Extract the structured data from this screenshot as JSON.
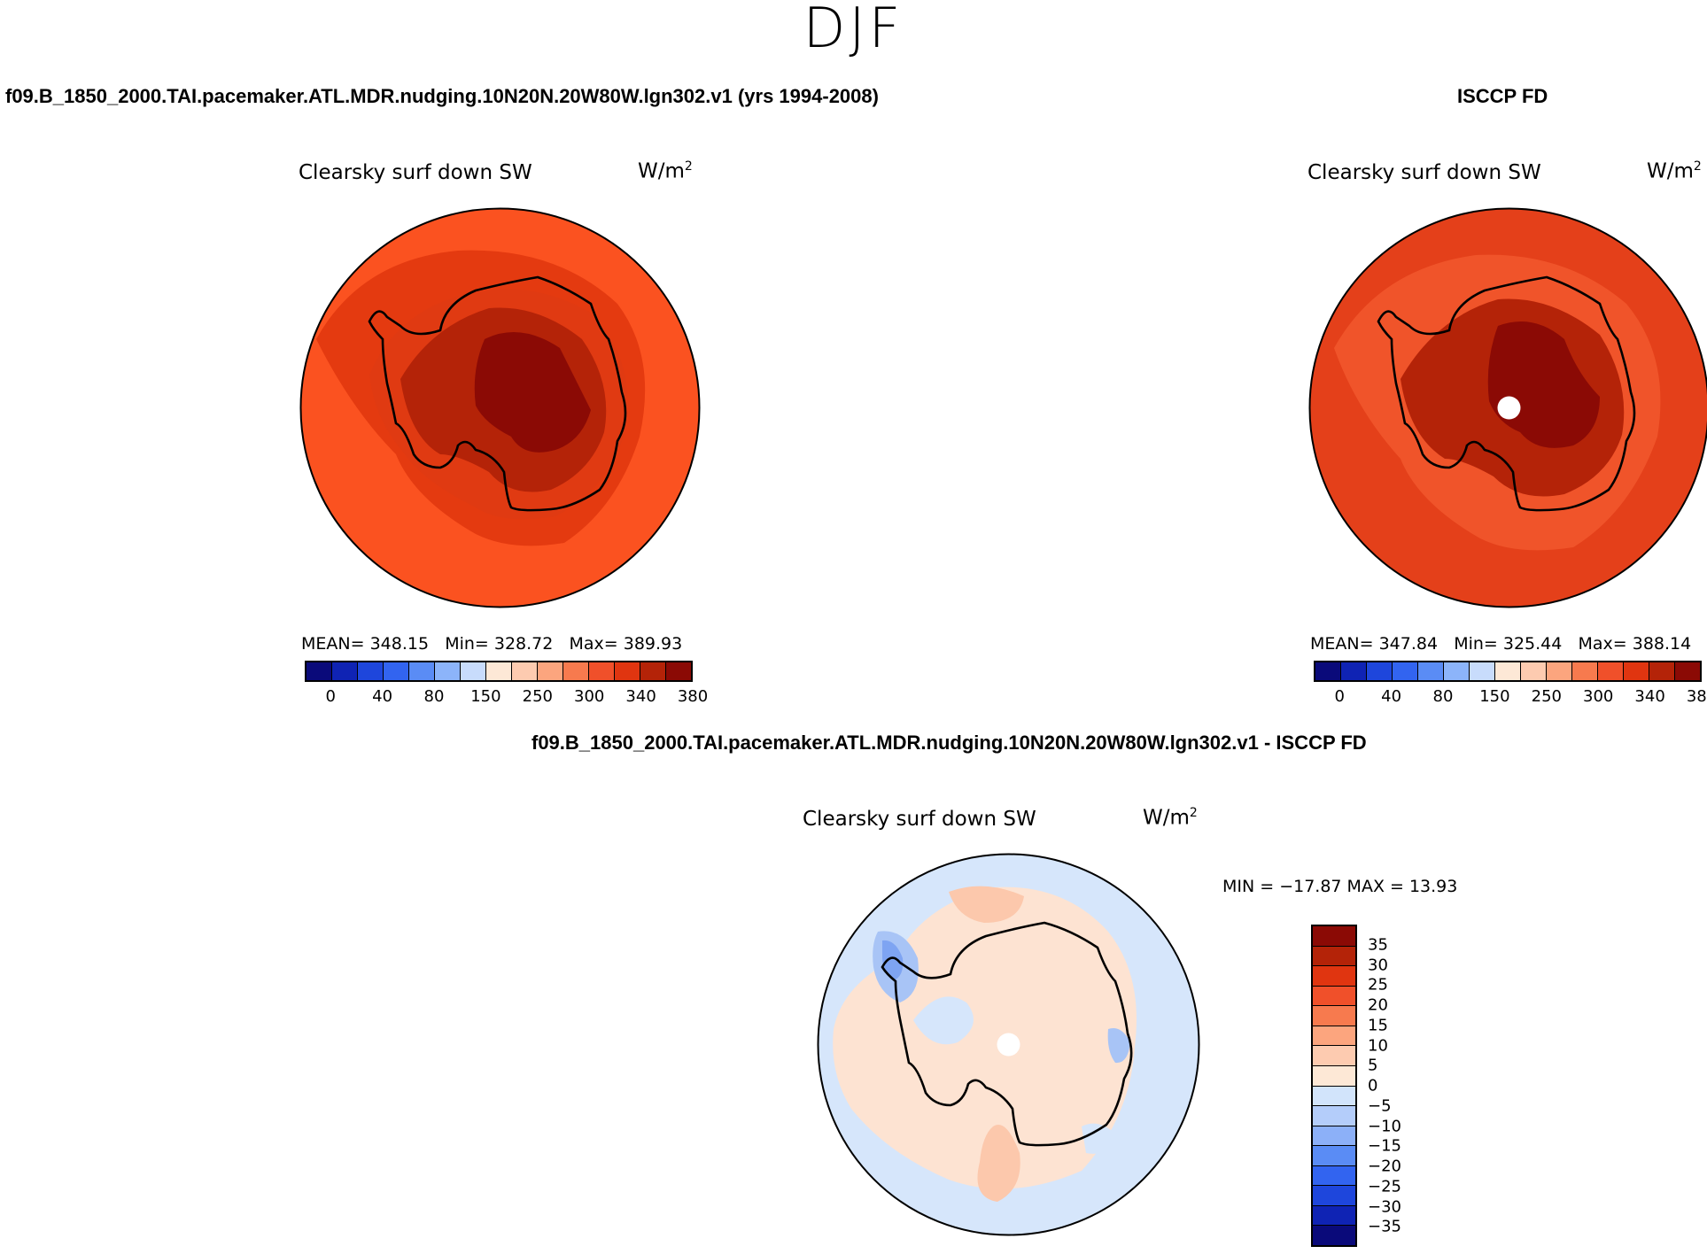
{
  "season": "DJF",
  "panels": {
    "model": {
      "case_title": "f09.B_1850_2000.TAI.pacemaker.ATL.MDR.nudging.10N20N.20W80W.lgn302.v1 (yrs 1994-2008)",
      "var_title": "Clearsky surf down SW",
      "units_base": "W/m",
      "units_exp": "2",
      "mean_label": "MEAN=",
      "mean": "348.15",
      "min_label": "Min=",
      "min": "328.72",
      "max_label": "Max=",
      "max": "389.93"
    },
    "obs": {
      "case_title": "ISCCP FD",
      "var_title": "Clearsky surf down SW",
      "units_base": "W/m",
      "units_exp": "2",
      "mean_label": "MEAN=",
      "mean": "347.84",
      "min_label": "Min=",
      "min": "325.44",
      "max_label": "Max=",
      "max": "388.14"
    },
    "diff": {
      "case_title": "f09.B_1850_2000.TAI.pacemaker.ATL.MDR.nudging.10N20N.20W80W.lgn302.v1 - ISCCP FD",
      "var_title": "Clearsky surf down SW",
      "units_base": "W/m",
      "units_exp": "2",
      "minmax_text": "MIN = −17.87 MAX =  13.93"
    }
  },
  "colorbar_abs": {
    "colors": [
      "#0a0a7a",
      "#0f23b4",
      "#1e46dc",
      "#3264f0",
      "#5a8cf5",
      "#8cb4fa",
      "#c8dcfc",
      "#fde8d6",
      "#fdcbb0",
      "#fca57e",
      "#f77a4e",
      "#f0502a",
      "#e03510",
      "#b42308",
      "#8b0a05"
    ],
    "labels": [
      "0",
      "40",
      "80",
      "150",
      "250",
      "300",
      "340",
      "380"
    ]
  },
  "colorbar_diff": {
    "colors": [
      "#8b0a05",
      "#b42308",
      "#e03510",
      "#f0502a",
      "#f77a4e",
      "#fca57e",
      "#fdcbb0",
      "#fde8d6",
      "#d2e4fb",
      "#b4cdfa",
      "#8cb0f8",
      "#5a8cf5",
      "#3264f0",
      "#1e46dc",
      "#0f23b4",
      "#0a0a7a"
    ],
    "labels": [
      "35",
      "30",
      "25",
      "20",
      "15",
      "10",
      "5",
      "0",
      "−5",
      "−10",
      "−15",
      "−20",
      "−25",
      "−30",
      "−35"
    ]
  },
  "map_colors": {
    "ocean_model": "#fb5220",
    "ring_model": "#e43a10",
    "coast_model": "#e03a12",
    "land_model": "#b42308",
    "core_model": "#8b0a05",
    "ocean_obs": "#e4401a",
    "ring_obs": "#f0542a",
    "land_obs": "#b42308",
    "core_obs": "#8b0a05",
    "pole_hole": "#ffffff",
    "diff_base": "#d6e6fb",
    "diff_pos": "#fde3d2",
    "diff_pos2": "#fcc8ac",
    "diff_neg": "#a8c4f6",
    "diff_neg2": "#7ea4f2",
    "coastline": "#000000"
  }
}
